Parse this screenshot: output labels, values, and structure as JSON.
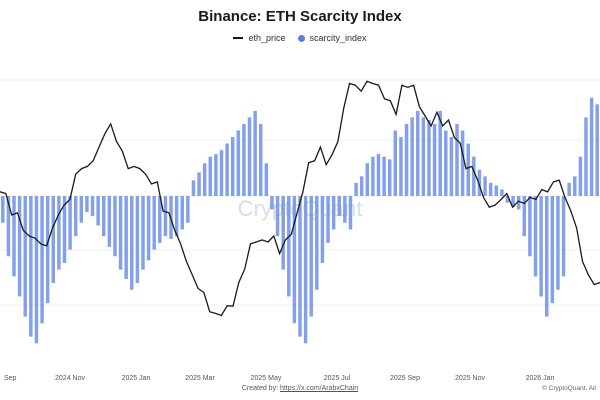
{
  "chart_data": {
    "type": "bar",
    "title": "Binance: ETH Scarcity Index",
    "legend": [
      {
        "name": "eth_price",
        "marker": "line",
        "color": "#1a1a1a"
      },
      {
        "name": "scarcity_index",
        "marker": "dot",
        "color": "#5d7fe0"
      }
    ],
    "legend_position": "top-center",
    "x_tick_labels": [
      "Sep",
      "2024 Nov",
      "2025 Jan",
      "2025 Mar",
      "2025 May",
      "2025 Jul",
      "2025 Sep",
      "2025 Nov",
      "2026 Jan"
    ],
    "watermark": "CryptoQuant",
    "grid": true,
    "scarcity_index_values": [
      -0.2,
      -0.45,
      -0.6,
      -0.75,
      -0.9,
      -1.05,
      -1.1,
      -0.95,
      -0.8,
      -0.65,
      -0.55,
      -0.5,
      -0.4,
      -0.3,
      -0.2,
      -0.12,
      -0.15,
      -0.22,
      -0.3,
      -0.38,
      -0.45,
      -0.55,
      -0.62,
      -0.7,
      -0.65,
      -0.55,
      -0.48,
      -0.4,
      -0.35,
      -0.3,
      -0.32,
      -0.3,
      -0.25,
      -0.2,
      0.12,
      0.18,
      0.25,
      0.3,
      0.32,
      0.35,
      0.4,
      0.45,
      0.5,
      0.55,
      0.6,
      0.65,
      0.55,
      0.25,
      -0.1,
      -0.3,
      -0.55,
      -0.75,
      -0.95,
      -1.05,
      -1.1,
      -0.9,
      -0.7,
      -0.5,
      -0.35,
      -0.25,
      -0.15,
      -0.2,
      -0.25,
      0.1,
      0.15,
      0.25,
      0.3,
      0.32,
      0.3,
      0.28,
      0.5,
      0.45,
      0.55,
      0.6,
      0.65,
      0.6,
      0.58,
      0.55,
      0.65,
      0.5,
      0.45,
      0.55,
      0.5,
      0.4,
      0.3,
      0.2,
      0.15,
      0.1,
      0.08,
      0.05,
      -0.05,
      -0.08,
      -0.1,
      -0.3,
      -0.45,
      -0.6,
      -0.75,
      -0.9,
      -0.8,
      -0.7,
      -0.6,
      0.1,
      0.15,
      0.3,
      0.6,
      0.75,
      0.7
    ],
    "eth_price_values": [
      3.2,
      3.1,
      2.9,
      2.85,
      2.7,
      2.55,
      2.6,
      2.45,
      2.5,
      2.65,
      2.9,
      2.95,
      3.1,
      3.35,
      3.5,
      3.45,
      3.6,
      3.7,
      3.95,
      4.0,
      3.85,
      3.65,
      3.5,
      3.45,
      3.5,
      3.35,
      3.3,
      3.25,
      2.95,
      2.85,
      2.7,
      2.45,
      2.3,
      2.05,
      1.95,
      1.82,
      1.65,
      1.55,
      1.6,
      1.65,
      1.72,
      1.95,
      2.2,
      2.45,
      2.55,
      2.5,
      2.55,
      2.55,
      2.4,
      2.5,
      2.65,
      2.85,
      3.2,
      3.5,
      3.6,
      3.7,
      3.55,
      3.6,
      3.85,
      4.2,
      4.6,
      4.5,
      4.5,
      4.55,
      4.6,
      4.5,
      4.4,
      4.3,
      4.2,
      4.5,
      4.55,
      4.5,
      4.3,
      4.1,
      4.05,
      4.15,
      4.05,
      4.05,
      3.9,
      3.75,
      3.5,
      3.45,
      3.35,
      3.05,
      3.0,
      2.95,
      3.1,
      3.1,
      3.0,
      3.0,
      3.05,
      3.05,
      3.1,
      3.15,
      3.2,
      3.25,
      3.35,
      3.05,
      2.95,
      2.65,
      2.3,
      2.05,
      2.0,
      1.95
    ],
    "y_range_scarcity": [
      -1.15,
      1.0
    ],
    "y_range_price": [
      1.4,
      4.8
    ]
  },
  "footer": {
    "created_by_label": "Created by: ",
    "created_by_link": "https://x.com/ArabxChain",
    "copyright": "© CryptoQuant. All"
  }
}
